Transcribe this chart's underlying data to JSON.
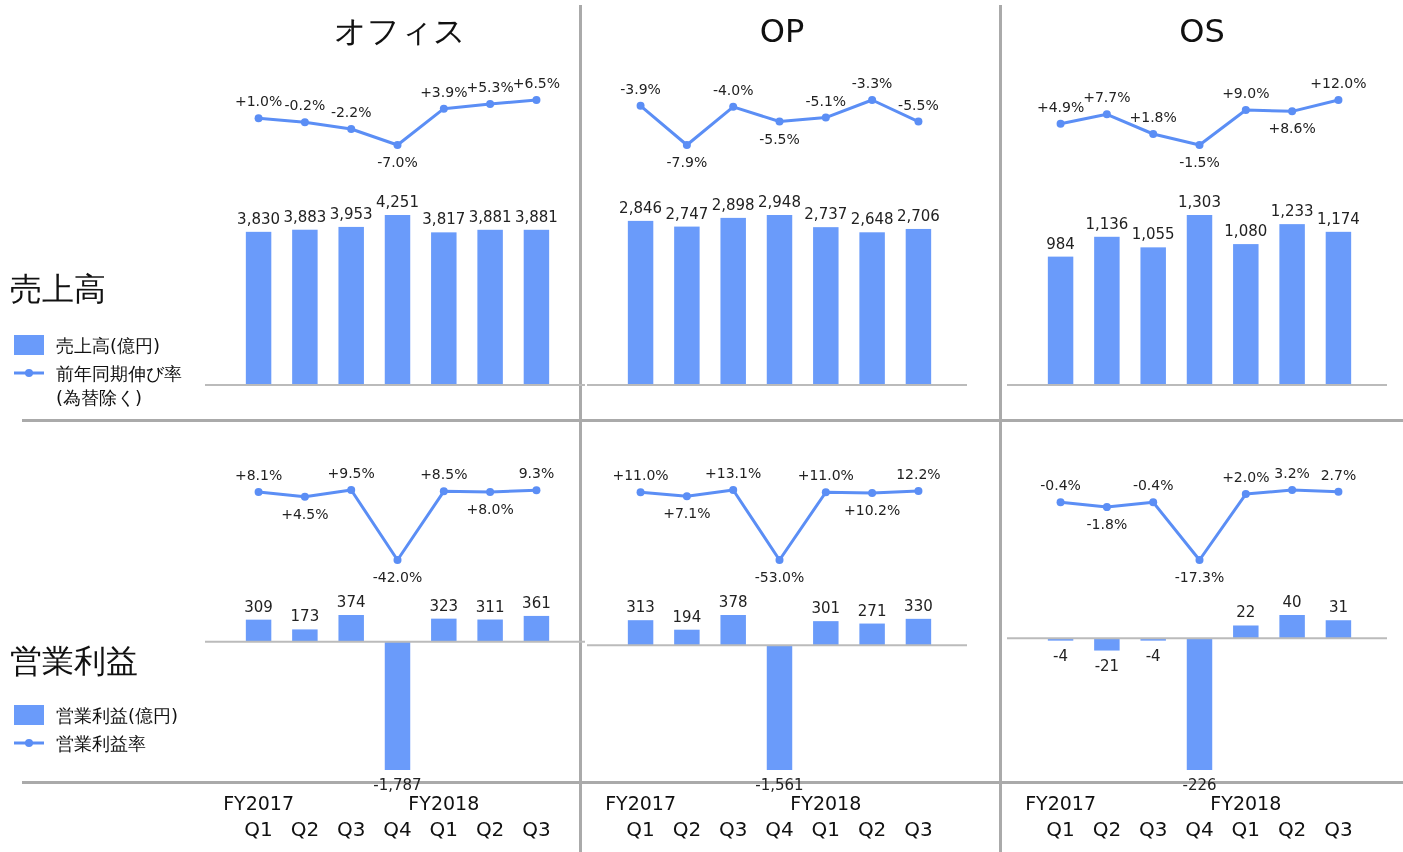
{
  "chart_data": [
    {
      "type": "line",
      "title": "オフィス",
      "categories": [
        null,
        null,
        null,
        null,
        null,
        null,
        null
      ],
      "legend": "left",
      "marker": "circle",
      "series": [
        {
          "name": "前年同期伸び率\n(為替除く)",
          "color": "#5b8ef5",
          "values": [
            1.0,
            -0.2,
            -2.2,
            -7.0,
            3.9,
            5.3,
            6.5
          ],
          "value_labels": [
            "+1.0%",
            "-0.2%",
            "-2.2%",
            "-7.0%",
            "+3.9%",
            "+5.3%",
            "+6.5%"
          ]
        }
      ]
    },
    {
      "type": "bar",
      "ylabel": "売上高",
      "categories": [
        null,
        null,
        null,
        null,
        null,
        null,
        null
      ],
      "legend": "left",
      "series": [
        {
          "name": "売上高(億円)",
          "color": "#6a9bfa",
          "values": [
            3830,
            3883,
            3953,
            4251,
            3817,
            3881,
            3881
          ],
          "value_labels": [
            "3,830",
            "3,883",
            "3,953",
            "4,251",
            "3,817",
            "3,881",
            "3,881"
          ]
        }
      ]
    },
    {
      "type": "line",
      "title": "OP",
      "categories": [
        null,
        null,
        null,
        null,
        null,
        null,
        null
      ],
      "marker": "circle",
      "series": [
        {
          "color": "#5b8ef5",
          "values": [
            -3.9,
            -7.9,
            -4.0,
            -5.5,
            -5.1,
            -3.3,
            -5.5
          ],
          "value_labels": [
            "-3.9%",
            "-7.9%",
            "-4.0%",
            "-5.5%",
            "-5.1%",
            "-3.3%",
            "-5.5%"
          ]
        }
      ]
    },
    {
      "type": "bar",
      "categories": [
        null,
        null,
        null,
        null,
        null,
        null,
        null
      ],
      "series": [
        {
          "color": "#6a9bfa",
          "values": [
            2846,
            2747,
            2898,
            2948,
            2737,
            2648,
            2706
          ],
          "value_labels": [
            "2,846",
            "2,747",
            "2,898",
            "2,948",
            "2,737",
            "2,648",
            "2,706"
          ]
        }
      ]
    },
    {
      "type": "line",
      "title": "OS",
      "categories": [
        null,
        null,
        null,
        null,
        null,
        null,
        null
      ],
      "marker": "circle",
      "series": [
        {
          "color": "#5b8ef5",
          "values": [
            4.9,
            7.7,
            1.8,
            -1.5,
            9.0,
            8.6,
            12.0
          ],
          "value_labels": [
            "+4.9%",
            "+7.7%",
            "+1.8%",
            "-1.5%",
            "+9.0%",
            "+8.6%",
            "+12.0%"
          ]
        }
      ]
    },
    {
      "type": "bar",
      "categories": [
        null,
        null,
        null,
        null,
        null,
        null,
        null
      ],
      "series": [
        {
          "color": "#6a9bfa",
          "values": [
            984,
            1136,
            1055,
            1303,
            1080,
            1233,
            1174
          ],
          "value_labels": [
            "984",
            "1,136",
            "1,055",
            "1,303",
            "1,080",
            "1,233",
            "1,174"
          ]
        }
      ]
    },
    {
      "type": "line",
      "categories": [
        null,
        null,
        null,
        null,
        null,
        null,
        null
      ],
      "legend": "left",
      "marker": "circle",
      "series": [
        {
          "name": "営業利益率",
          "color": "#5b8ef5",
          "values": [
            8.1,
            4.5,
            9.5,
            -42.0,
            8.5,
            8.0,
            9.3
          ],
          "value_labels": [
            "+8.1%",
            "+4.5%",
            "+9.5%",
            "-42.0%",
            "+8.5%",
            "+8.0%",
            "9.3%"
          ]
        }
      ]
    },
    {
      "type": "bar",
      "ylabel": "営業利益",
      "categories": [
        "Q1",
        "Q2",
        "Q3",
        "Q4",
        "Q1",
        "Q2",
        "Q3"
      ],
      "legend": "left",
      "annotations": [
        "FY2017",
        "FY2018"
      ],
      "series": [
        {
          "name": "営業利益(億円)",
          "color": "#6a9bfa",
          "values": [
            309,
            173,
            374,
            -1787,
            323,
            311,
            361
          ],
          "value_labels": [
            "309",
            "173",
            "374",
            "-1,787",
            "323",
            "311",
            "361"
          ]
        }
      ]
    },
    {
      "type": "line",
      "categories": [
        null,
        null,
        null,
        null,
        null,
        null,
        null
      ],
      "marker": "circle",
      "series": [
        {
          "color": "#5b8ef5",
          "values": [
            11.0,
            7.1,
            13.1,
            -53.0,
            11.0,
            10.2,
            12.2
          ],
          "value_labels": [
            "+11.0%",
            "+7.1%",
            "+13.1%",
            "-53.0%",
            "+11.0%",
            "+10.2%",
            "12.2%"
          ]
        }
      ]
    },
    {
      "type": "bar",
      "categories": [
        "Q1",
        "Q2",
        "Q3",
        "Q4",
        "Q1",
        "Q2",
        "Q3"
      ],
      "annotations": [
        "FY2017",
        "FY2018"
      ],
      "series": [
        {
          "color": "#6a9bfa",
          "values": [
            313,
            194,
            378,
            -1561,
            301,
            271,
            330
          ],
          "value_labels": [
            "313",
            "194",
            "378",
            "-1,561",
            "301",
            "271",
            "330"
          ]
        }
      ]
    },
    {
      "type": "line",
      "categories": [
        null,
        null,
        null,
        null,
        null,
        null,
        null
      ],
      "marker": "circle",
      "series": [
        {
          "color": "#5b8ef5",
          "values": [
            -0.4,
            -1.8,
            -0.4,
            -17.3,
            2.0,
            3.2,
            2.7
          ],
          "value_labels": [
            "-0.4%",
            "-1.8%",
            "-0.4%",
            "-17.3%",
            "+2.0%",
            "3.2%",
            "2.7%"
          ]
        }
      ]
    },
    {
      "type": "bar",
      "categories": [
        "Q1",
        "Q2",
        "Q3",
        "Q4",
        "Q1",
        "Q2",
        "Q3"
      ],
      "annotations": [
        "FY2017",
        "FY2018"
      ],
      "series": [
        {
          "color": "#6a9bfa",
          "values": [
            -4,
            -21,
            -4,
            -226,
            22,
            40,
            31
          ],
          "value_labels": [
            "-4",
            "-21",
            "-4",
            "-226",
            "22",
            "40",
            "31"
          ]
        }
      ]
    }
  ]
}
